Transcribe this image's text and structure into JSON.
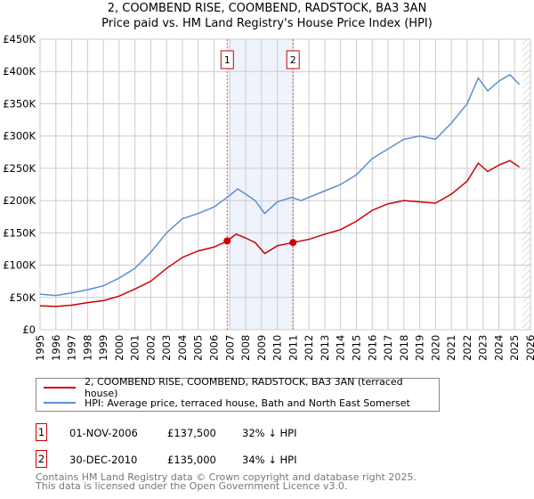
{
  "title_line1": "2, COOMBEND RISE, COOMBEND, RADSTOCK, BA3 3AN",
  "title_line2": "Price paid vs. HM Land Registry's House Price Index (HPI)",
  "chart_data": {
    "type": "line",
    "title": "2, COOMBEND RISE, COOMBEND, RADSTOCK, BA3 3AN — Price paid vs. HM Land Registry's House Price Index (HPI)",
    "xlim": [
      1995,
      2026
    ],
    "ylim": [
      0,
      450000
    ],
    "x_ticks": [
      "1995",
      "1996",
      "1997",
      "1998",
      "1999",
      "2000",
      "2001",
      "2002",
      "2003",
      "2004",
      "2005",
      "2006",
      "2007",
      "2008",
      "2009",
      "2010",
      "2011",
      "2012",
      "2013",
      "2014",
      "2015",
      "2016",
      "2017",
      "2018",
      "2019",
      "2020",
      "2021",
      "2022",
      "2023",
      "2024",
      "2025",
      "2026"
    ],
    "y_ticks": [
      {
        "v": 0,
        "label": "£0"
      },
      {
        "v": 50000,
        "label": "£50K"
      },
      {
        "v": 100000,
        "label": "£100K"
      },
      {
        "v": 150000,
        "label": "£150K"
      },
      {
        "v": 200000,
        "label": "£200K"
      },
      {
        "v": 250000,
        "label": "£250K"
      },
      {
        "v": 300000,
        "label": "£300K"
      },
      {
        "v": 350000,
        "label": "£350K"
      },
      {
        "v": 400000,
        "label": "£400K"
      },
      {
        "v": 450000,
        "label": "£450K"
      }
    ],
    "grid": true,
    "shaded_range": [
      2006.83,
      2010.99
    ],
    "hatched_from": 2025.5,
    "series": [
      {
        "name": "2, COOMBEND RISE, COOMBEND, RADSTOCK, BA3 3AN (terraced house)",
        "color": "#cc0000",
        "x": [
          1995,
          1996,
          1997,
          1998,
          1999,
          2000,
          2001,
          2002,
          2003,
          2004,
          2005,
          2006,
          2006.83,
          2007.4,
          2008,
          2008.6,
          2009.2,
          2010,
          2010.99,
          2012,
          2013,
          2014,
          2015,
          2016,
          2017,
          2018,
          2019,
          2020,
          2021,
          2022,
          2022.7,
          2023.3,
          2024,
          2024.7,
          2025.3
        ],
        "y": [
          37000,
          36000,
          38000,
          42000,
          45000,
          52000,
          63000,
          75000,
          95000,
          112000,
          122000,
          128000,
          137500,
          148000,
          142000,
          135000,
          118000,
          130000,
          135000,
          140000,
          148000,
          155000,
          168000,
          185000,
          195000,
          200000,
          198000,
          196000,
          210000,
          230000,
          258000,
          245000,
          255000,
          262000,
          252000
        ]
      },
      {
        "name": "HPI: Average price, terraced house, Bath and North East Somerset",
        "color": "#5b8fd0",
        "x": [
          1995,
          1996,
          1997,
          1998,
          1999,
          2000,
          2001,
          2002,
          2003,
          2004,
          2005,
          2006,
          2006.83,
          2007.5,
          2008,
          2008.6,
          2009.2,
          2010,
          2010.9,
          2011.5,
          2012,
          2013,
          2014,
          2015,
          2016,
          2017,
          2018,
          2019,
          2020,
          2021,
          2022,
          2022.7,
          2023.3,
          2024,
          2024.7,
          2025.3
        ],
        "y": [
          55000,
          53000,
          57000,
          62000,
          68000,
          80000,
          95000,
          120000,
          150000,
          172000,
          180000,
          190000,
          205000,
          218000,
          210000,
          200000,
          180000,
          198000,
          205000,
          200000,
          205000,
          215000,
          225000,
          240000,
          265000,
          280000,
          295000,
          300000,
          295000,
          320000,
          350000,
          390000,
          370000,
          385000,
          395000,
          380000
        ]
      }
    ],
    "markers": [
      {
        "label": "1",
        "x": 2006.83,
        "y": 137500
      },
      {
        "label": "2",
        "x": 2010.99,
        "y": 135000
      }
    ]
  },
  "legend": [
    "2, COOMBEND RISE, COOMBEND, RADSTOCK, BA3 3AN (terraced house)",
    "HPI: Average price, terraced house, Bath and North East Somerset"
  ],
  "transactions": [
    {
      "num": "1",
      "date": "01-NOV-2006",
      "price": "£137,500",
      "hpi": "32% ↓ HPI"
    },
    {
      "num": "2",
      "date": "30-DEC-2010",
      "price": "£135,000",
      "hpi": "34% ↓ HPI"
    }
  ],
  "footer_line1": "Contains HM Land Registry data © Crown copyright and database right 2025.",
  "footer_line2": "This data is licensed under the Open Government Licence v3.0."
}
